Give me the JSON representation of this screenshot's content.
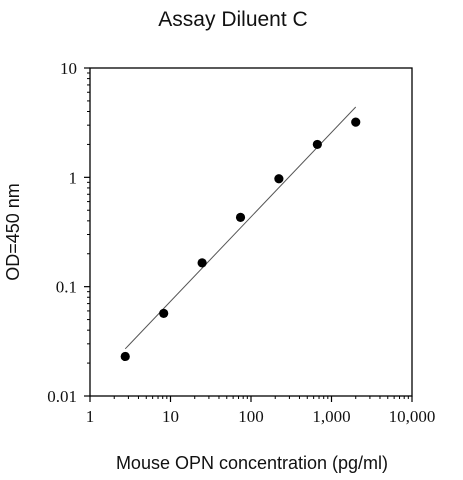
{
  "chart_data": {
    "type": "scatter",
    "title": "Assay Diluent C",
    "xlabel": "Mouse OPN concentration (pg/ml)",
    "ylabel": "OD=450 nm",
    "xscale": "log",
    "yscale": "log",
    "xlim": [
      1,
      10000
    ],
    "ylim": [
      0.01,
      10
    ],
    "x_tick_labels": [
      "1",
      "10",
      "100",
      "1,000",
      "10,000"
    ],
    "y_tick_labels": [
      "0.01",
      "0.1",
      "1",
      "10"
    ],
    "grid": false,
    "legend": "none",
    "series": [
      {
        "x": [
          2.74,
          8.23,
          24.7,
          74.1,
          222,
          667,
          2000
        ],
        "y": [
          0.023,
          0.057,
          0.165,
          0.43,
          0.97,
          2.0,
          3.2
        ]
      }
    ],
    "fit_line": {
      "x": [
        2.74,
        2000
      ],
      "y": [
        0.027,
        4.4
      ]
    },
    "colors": {
      "marker": "#000000",
      "fit_line": "#555555",
      "axis": "#000000"
    }
  }
}
